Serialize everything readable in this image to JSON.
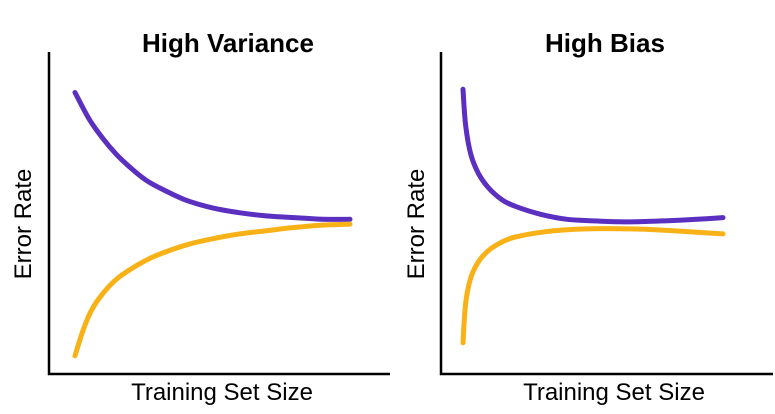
{
  "colors": {
    "validation_error": "#5b2fc0",
    "training_error": "#f8b217",
    "axis": "#000000",
    "background": "#ffffff"
  },
  "chart_data": [
    {
      "type": "line",
      "title": "High Variance",
      "xlabel": "Training Set Size",
      "ylabel": "Error Rate",
      "xlim": [
        0,
        100
      ],
      "ylim": [
        0,
        100
      ],
      "grid": false,
      "legend": "none",
      "series": [
        {
          "key": "upper",
          "color": "#5b2fc0",
          "x": [
            0,
            5,
            10,
            15,
            20,
            25,
            30,
            40,
            50,
            60,
            70,
            80,
            90,
            100
          ],
          "y": [
            90,
            82,
            76,
            71,
            67,
            63.5,
            61,
            57,
            54.5,
            53,
            52,
            51.5,
            51,
            51
          ]
        },
        {
          "key": "lower",
          "color": "#f8b217",
          "x": [
            0,
            3,
            6,
            10,
            15,
            20,
            25,
            30,
            40,
            50,
            60,
            70,
            80,
            90,
            100
          ],
          "y": [
            9,
            17,
            23,
            28,
            32.5,
            35.5,
            38,
            40,
            43,
            45,
            46.5,
            47.5,
            48.5,
            49.2,
            49.5
          ]
        }
      ]
    },
    {
      "type": "line",
      "title": "High Bias",
      "xlabel": "Training Set Size",
      "ylabel": "Error Rate",
      "xlim": [
        0,
        100
      ],
      "ylim": [
        0,
        100
      ],
      "grid": false,
      "legend": "none",
      "series": [
        {
          "key": "upper",
          "color": "#5b2fc0",
          "x": [
            0,
            1,
            3,
            6,
            10,
            15,
            20,
            30,
            40,
            50,
            60,
            70,
            80,
            90,
            100
          ],
          "y": [
            91,
            80,
            71,
            65,
            60.5,
            57,
            55,
            52.5,
            51,
            50.5,
            50.2,
            50.3,
            50.6,
            51,
            51.5
          ]
        },
        {
          "key": "lower",
          "color": "#f8b217",
          "x": [
            0,
            1,
            3,
            6,
            10,
            15,
            20,
            30,
            40,
            50,
            60,
            70,
            80,
            90,
            100
          ],
          "y": [
            13,
            25,
            33,
            38,
            41.5,
            44,
            45.5,
            47,
            47.8,
            48.1,
            48.1,
            47.9,
            47.5,
            47,
            46.5
          ]
        }
      ]
    }
  ]
}
